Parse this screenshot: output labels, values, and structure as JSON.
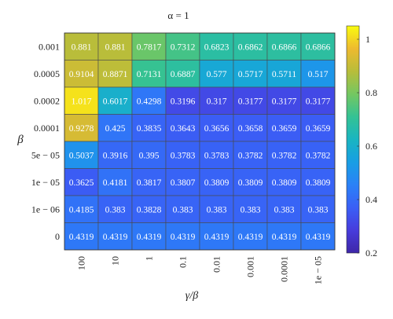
{
  "chart_data": {
    "type": "heatmap",
    "title": "α = 1",
    "xlabel": "γ/β",
    "ylabel": "β",
    "x_categories": [
      "100",
      "10",
      "1",
      "0.1",
      "0.01",
      "0.001",
      "0.0001",
      "1e − 05"
    ],
    "y_categories": [
      "0.001",
      "0.0005",
      "0.0002",
      "0.0001",
      "5e − 05",
      "1e − 05",
      "1e − 06",
      "0"
    ],
    "values": [
      [
        "0.881",
        "0.881",
        "0.7817",
        "0.7312",
        "0.6823",
        "0.6862",
        "0.6866",
        "0.6866"
      ],
      [
        "0.9104",
        "0.8871",
        "0.7131",
        "0.6887",
        "0.577",
        "0.5717",
        "0.5711",
        "0.517"
      ],
      [
        "1.017",
        "0.6017",
        "0.4298",
        "0.3196",
        "0.317",
        "0.3177",
        "0.3177",
        "0.3177"
      ],
      [
        "0.9278",
        "0.425",
        "0.3835",
        "0.3643",
        "0.3656",
        "0.3658",
        "0.3659",
        "0.3659"
      ],
      [
        "0.5037",
        "0.3916",
        "0.395",
        "0.3783",
        "0.3783",
        "0.3782",
        "0.3782",
        "0.3782"
      ],
      [
        "0.3625",
        "0.4181",
        "0.3817",
        "0.3807",
        "0.3809",
        "0.3809",
        "0.3809",
        "0.3809"
      ],
      [
        "0.4185",
        "0.383",
        "0.3828",
        "0.383",
        "0.383",
        "0.383",
        "0.383",
        "0.383"
      ],
      [
        "0.4319",
        "0.4319",
        "0.4319",
        "0.4319",
        "0.4319",
        "0.4319",
        "0.4319",
        "0.4319"
      ]
    ],
    "colorbar": {
      "ticks": [
        "0.2",
        "0.4",
        "0.6",
        "0.8",
        "1"
      ],
      "range": [
        0.2,
        1.05
      ],
      "colormap": "parula"
    },
    "grid": true
  }
}
